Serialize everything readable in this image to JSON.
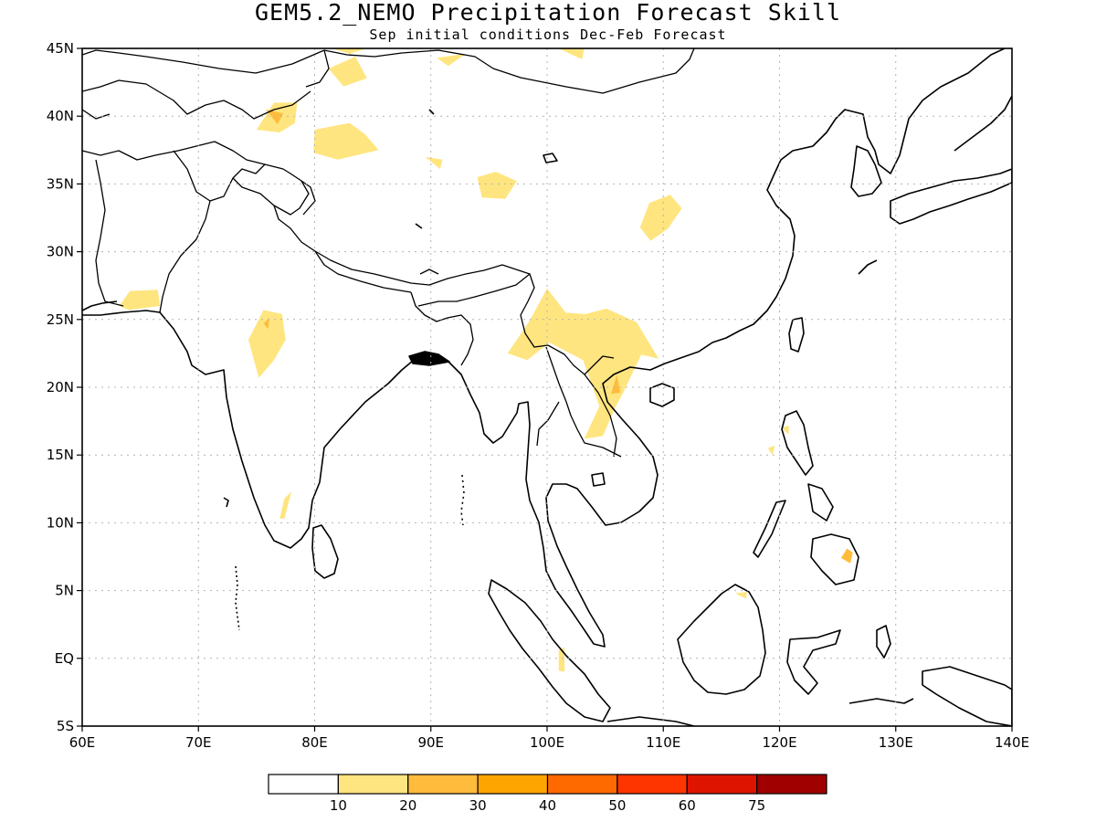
{
  "title": "GEM5.2_NEMO Precipitation Forecast Skill",
  "subtitle": "Sep initial conditions  Dec-Feb Forecast",
  "map": {
    "lon_range": [
      60,
      140
    ],
    "lat_range": [
      -5,
      45
    ],
    "lon_ticks": [
      60,
      70,
      80,
      90,
      100,
      110,
      120,
      130,
      140
    ],
    "lat_ticks": [
      45,
      40,
      35,
      30,
      25,
      20,
      15,
      10,
      5,
      0,
      -5
    ],
    "lon_labels": [
      "60E",
      "70E",
      "80E",
      "90E",
      "100E",
      "110E",
      "120E",
      "130E",
      "140E"
    ],
    "lat_labels": [
      "45N",
      "40N",
      "35N",
      "30N",
      "25N",
      "20N",
      "15N",
      "10N",
      "5N",
      "EQ",
      "5S"
    ],
    "grid": "dotted"
  },
  "colorbar": {
    "colors": [
      "#ffffff",
      "#ffe57f",
      "#ffbc3c",
      "#ffa500",
      "#ff6a00",
      "#ff3500",
      "#de1400",
      "#a00000"
    ],
    "labels": [
      "10",
      "20",
      "30",
      "40",
      "50",
      "60",
      "75"
    ]
  },
  "skill_regions": [
    {
      "level": 20,
      "points": [
        [
          75.0,
          39.0
        ],
        [
          76.5,
          41.0
        ],
        [
          78.5,
          41.0
        ],
        [
          78.3,
          39.5
        ],
        [
          77.0,
          38.8
        ]
      ]
    },
    {
      "level": 20,
      "points": [
        [
          81.2,
          43.5
        ],
        [
          83.5,
          44.4
        ],
        [
          84.5,
          42.8
        ],
        [
          82.5,
          42.2
        ]
      ]
    },
    {
      "level": 20,
      "points": [
        [
          80.0,
          39.0
        ],
        [
          83.0,
          39.5
        ],
        [
          84.3,
          38.7
        ],
        [
          85.5,
          37.5
        ],
        [
          82.0,
          36.8
        ],
        [
          79.9,
          37.3
        ]
      ]
    },
    {
      "level": 20,
      "points": [
        [
          81.5,
          45.0
        ],
        [
          84.5,
          45.0
        ],
        [
          83.0,
          44.6
        ]
      ]
    },
    {
      "level": 20,
      "points": [
        [
          90.5,
          44.3
        ],
        [
          93.0,
          44.6
        ],
        [
          91.5,
          43.7
        ]
      ]
    },
    {
      "level": 20,
      "points": [
        [
          101.0,
          45.0
        ],
        [
          103.2,
          45.0
        ],
        [
          103.0,
          44.2
        ]
      ]
    },
    {
      "level": 20,
      "points": [
        [
          94.0,
          35.5
        ],
        [
          95.6,
          35.9
        ],
        [
          97.4,
          35.2
        ],
        [
          96.4,
          33.9
        ],
        [
          94.4,
          34.0
        ]
      ]
    },
    {
      "level": 20,
      "points": [
        [
          108.0,
          31.8
        ],
        [
          108.8,
          33.6
        ],
        [
          110.6,
          34.2
        ],
        [
          111.6,
          33.2
        ],
        [
          110.4,
          31.7
        ],
        [
          108.9,
          30.8
        ]
      ]
    },
    {
      "level": 20,
      "points": [
        [
          89.5,
          37.0
        ],
        [
          91.0,
          36.8
        ],
        [
          90.8,
          36.1
        ]
      ]
    },
    {
      "level": 20,
      "points": [
        [
          63.2,
          26.0
        ],
        [
          64.1,
          27.1
        ],
        [
          66.5,
          27.2
        ],
        [
          66.7,
          26.0
        ],
        [
          64.0,
          25.7
        ]
      ]
    },
    {
      "level": 20,
      "points": [
        [
          74.3,
          23.5
        ],
        [
          75.6,
          25.7
        ],
        [
          77.2,
          25.4
        ],
        [
          77.5,
          23.5
        ],
        [
          76.5,
          22.0
        ],
        [
          75.2,
          20.7
        ]
      ]
    },
    {
      "level": 20,
      "points": [
        [
          96.6,
          22.5
        ],
        [
          98.5,
          24.9
        ],
        [
          100.0,
          27.3
        ],
        [
          101.6,
          25.5
        ],
        [
          103.3,
          25.4
        ],
        [
          105.1,
          25.8
        ],
        [
          107.7,
          24.8
        ],
        [
          109.6,
          22.1
        ],
        [
          108.1,
          22.4
        ],
        [
          106.6,
          19.7
        ],
        [
          105.8,
          18.4
        ],
        [
          104.8,
          16.4
        ],
        [
          103.2,
          16.2
        ],
        [
          104.5,
          18.6
        ],
        [
          103.1,
          22.0
        ],
        [
          100.2,
          23.3
        ],
        [
          98.3,
          22.0
        ]
      ]
    },
    {
      "level": 20,
      "points": [
        [
          77.0,
          10.3
        ],
        [
          77.4,
          11.8
        ],
        [
          78.0,
          12.3
        ],
        [
          77.4,
          10.3
        ]
      ]
    },
    {
      "level": 20,
      "points": [
        [
          119.0,
          15.5
        ],
        [
          119.6,
          15.7
        ],
        [
          119.4,
          15.0
        ]
      ]
    },
    {
      "level": 20,
      "points": [
        [
          120.2,
          17.0
        ],
        [
          120.8,
          17.2
        ],
        [
          120.8,
          16.5
        ]
      ]
    },
    {
      "level": 20,
      "points": [
        [
          116.2,
          4.8
        ],
        [
          117.2,
          4.9
        ],
        [
          117.1,
          4.4
        ]
      ]
    },
    {
      "level": 20,
      "points": [
        [
          101.0,
          0.6
        ],
        [
          101.5,
          0.8
        ],
        [
          101.5,
          -1.0
        ],
        [
          101.0,
          -0.9
        ]
      ]
    },
    {
      "level": 30,
      "points": [
        [
          75.8,
          40.5
        ],
        [
          77.3,
          40.2
        ],
        [
          76.8,
          39.4
        ]
      ]
    },
    {
      "level": 30,
      "points": [
        [
          105.5,
          19.5
        ],
        [
          106.0,
          20.9
        ],
        [
          106.3,
          19.6
        ]
      ]
    },
    {
      "level": 30,
      "points": [
        [
          75.6,
          24.7
        ],
        [
          76.1,
          25.1
        ],
        [
          76.0,
          24.3
        ]
      ]
    },
    {
      "level": 30,
      "points": [
        [
          125.3,
          7.4
        ],
        [
          125.8,
          8.1
        ],
        [
          126.3,
          7.8
        ],
        [
          126.1,
          7.0
        ]
      ]
    }
  ]
}
